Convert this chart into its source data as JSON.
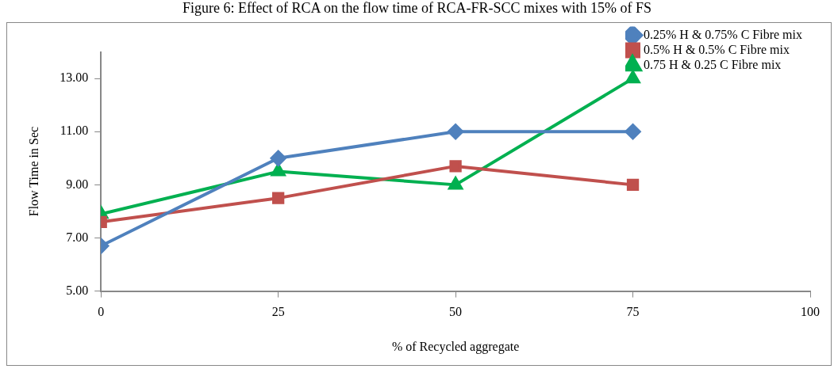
{
  "chart_data": {
    "type": "line",
    "title": "Figure 6: Effect of RCA on the flow time of RCA-FR-SCC mixes with 15% of FS",
    "xlabel": "% of Recycled aggregate",
    "ylabel": "Flow Time in Sec",
    "x": [
      0,
      25,
      50,
      75
    ],
    "series": [
      {
        "name": "0.25% H & 0.75% C Fibre mix",
        "color": "#4f81bd",
        "marker": "diamond",
        "values": [
          6.7,
          10,
          11,
          11
        ]
      },
      {
        "name": "0.5% H & 0.5% C Fibre mix",
        "color": "#c0504d",
        "marker": "square",
        "values": [
          7.6,
          8.5,
          9.7,
          9.0
        ]
      },
      {
        "name": "0.75 H & 0.25 C Fibre mix",
        "color": "#00b050",
        "marker": "triangle",
        "values": [
          7.9,
          9.5,
          9.0,
          13.0
        ]
      }
    ],
    "xlim": [
      0,
      100
    ],
    "xticks": [
      0,
      25,
      50,
      75,
      100
    ],
    "ylim": [
      5,
      14
    ],
    "yticks": [
      {
        "value": 5,
        "label": "5.00"
      },
      {
        "value": 7,
        "label": "7.00"
      },
      {
        "value": 9,
        "label": "9.00"
      },
      {
        "value": 11,
        "label": "11.00"
      },
      {
        "value": 13,
        "label": "13.00"
      }
    ],
    "grid": false,
    "legend": "top right",
    "line_style": "solid"
  }
}
